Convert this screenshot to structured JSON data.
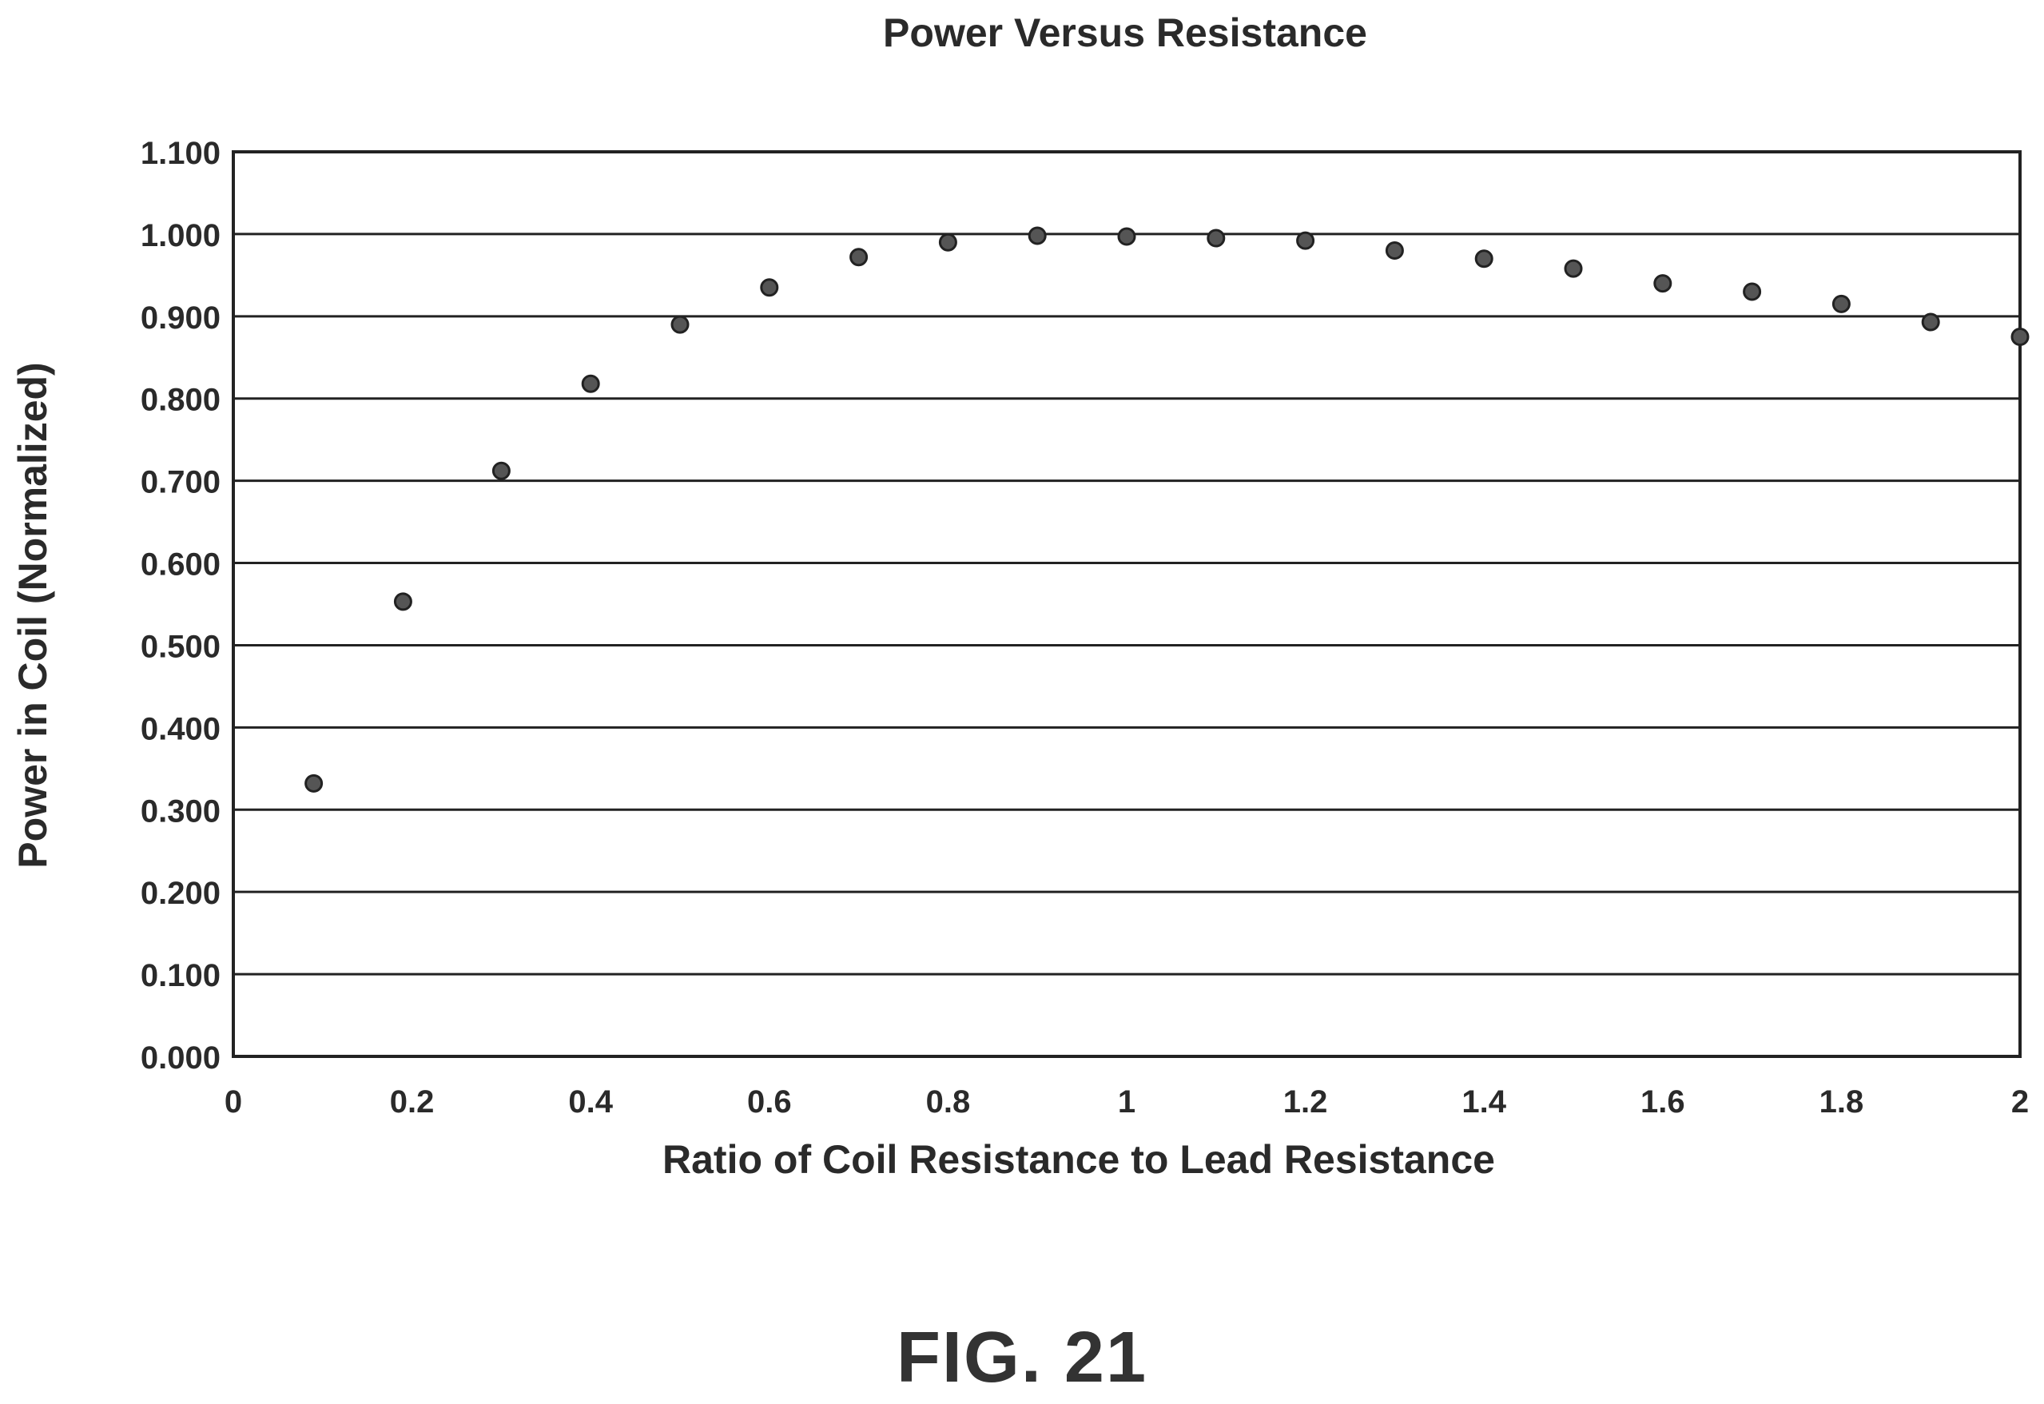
{
  "figure_label": "FIG. 21",
  "chart_data": {
    "type": "scatter",
    "title": "Power Versus Resistance",
    "xlabel": "Ratio of Coil Resistance to Lead Resistance",
    "ylabel": "Power in Coil (Normalized)",
    "xlim": [
      0,
      2
    ],
    "ylim": [
      0,
      1.1
    ],
    "x_ticks": [
      "0",
      "0.2",
      "0.4",
      "0.6",
      "0.8",
      "1",
      "1.2",
      "1.4",
      "1.6",
      "1.8",
      "2"
    ],
    "y_ticks": [
      "0.000",
      "0.100",
      "0.200",
      "0.300",
      "0.400",
      "0.500",
      "0.600",
      "0.700",
      "0.800",
      "0.900",
      "1.000",
      "1.100"
    ],
    "grid": "horizontal",
    "legend": "none",
    "marker_color": "#555555",
    "series": [
      {
        "x": [
          0.09,
          0.19,
          0.3,
          0.4,
          0.5,
          0.6,
          0.7,
          0.8,
          0.9,
          1.0,
          1.1,
          1.2,
          1.3,
          1.4,
          1.5,
          1.6,
          1.7,
          1.8,
          1.9,
          2.0
        ],
        "y": [
          0.332,
          0.553,
          0.712,
          0.818,
          0.89,
          0.935,
          0.972,
          0.99,
          0.998,
          0.997,
          0.995,
          0.992,
          0.98,
          0.97,
          0.958,
          0.94,
          0.93,
          0.915,
          0.893,
          0.875
        ]
      }
    ]
  }
}
